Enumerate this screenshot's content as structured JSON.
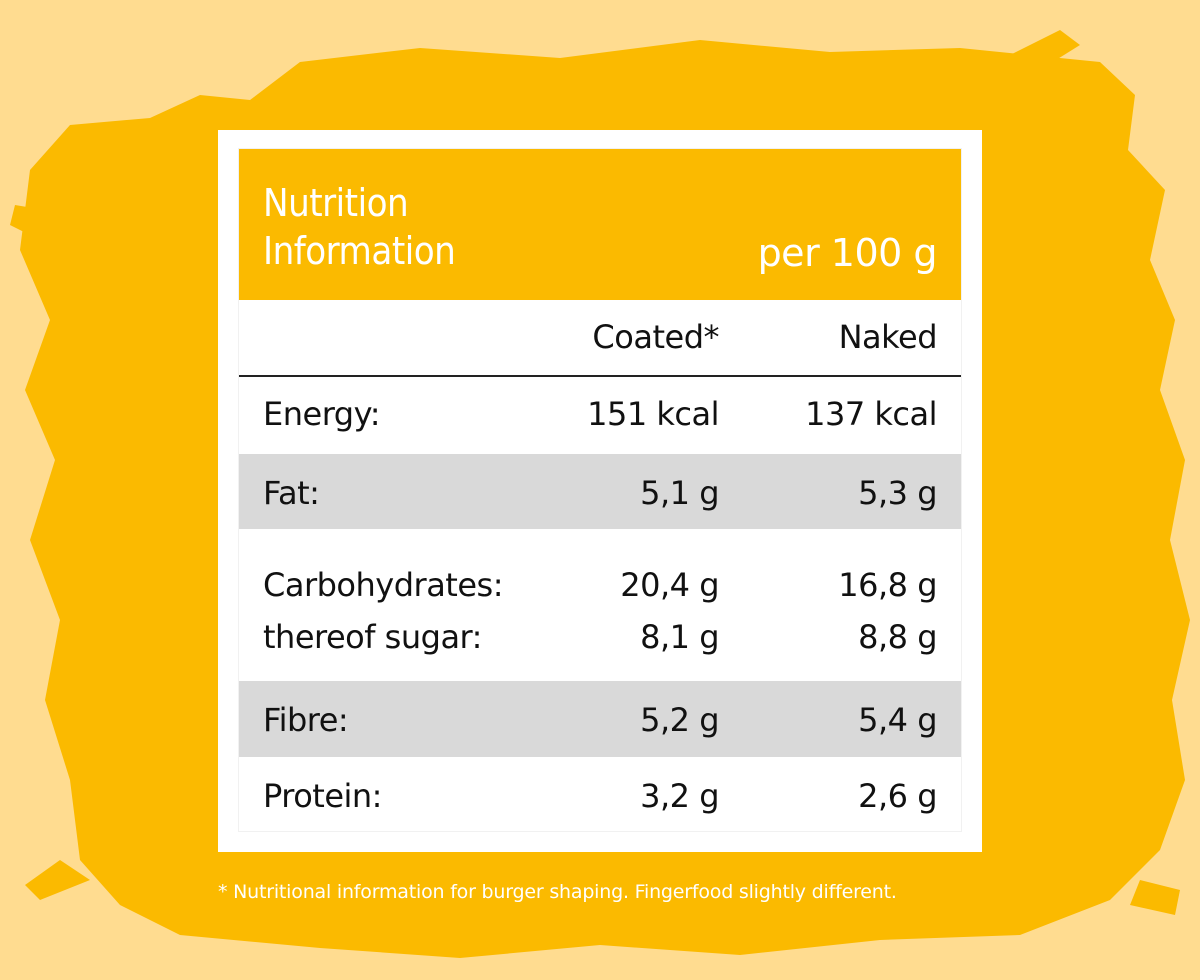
{
  "colors": {
    "background": "#FFDC90",
    "splash": "#FBBA00",
    "header": "#FBBA00",
    "stripe": "#D9D9D9"
  },
  "header": {
    "title": "Nutrition\nInformation",
    "per": "per 100 g"
  },
  "columns": {
    "coated": "Coated*",
    "naked": "Naked"
  },
  "rows": {
    "energy": {
      "label": "Energy:",
      "coated": "151 kcal",
      "naked": "137 kcal"
    },
    "fat": {
      "label": "Fat:",
      "coated": "5,1 g",
      "naked": "5,3 g"
    },
    "carbs": {
      "label": "Carbohydrates:\nthereof sugar:",
      "coated": "20,4 g\n8,1 g",
      "naked": "16,8 g\n8,8 g"
    },
    "fibre": {
      "label": "Fibre:",
      "coated": "5,2 g",
      "naked": "5,4 g"
    },
    "protein": {
      "label": "Protein:",
      "coated": "3,2 g",
      "naked": "2,6 g"
    }
  },
  "footnote": "* Nutritional information for burger shaping. Fingerfood slightly different."
}
